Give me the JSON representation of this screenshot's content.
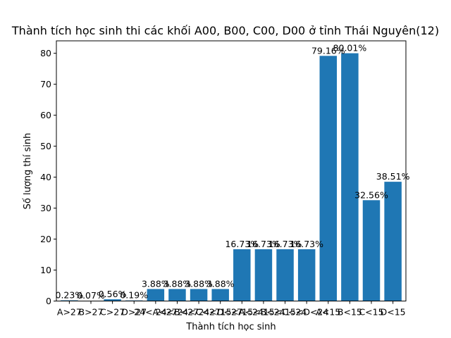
{
  "chart_data": {
    "type": "bar",
    "title": "Thành tích học sinh thi các khối A00, B00, C00, D00 ở tỉnh Thái Nguyên(12)",
    "xlabel": "Thành tích học sinh",
    "ylabel": "Số lượng thí sinh",
    "categories": [
      "A>27",
      "B>27",
      "C>27",
      "D>27",
      "24<A<27",
      "24<B<27",
      "24<C<27",
      "24<D<27",
      "15<A<24",
      "15<B<24",
      "15<C<24",
      "15<D<24",
      "A<15",
      "B<15",
      "C<15",
      "D<15"
    ],
    "values": [
      0.23,
      0.07,
      0.56,
      0.19,
      3.88,
      3.88,
      3.88,
      3.88,
      16.73,
      16.73,
      16.73,
      16.73,
      79.16,
      80.01,
      32.56,
      38.51
    ],
    "data_labels": [
      "0.23%",
      "0.07%",
      "0.56%",
      "0.19%",
      "3.88%",
      "3.88%",
      "3.88%",
      "3.88%",
      "16.73%",
      "16.73%",
      "16.73%",
      "16.73%",
      "79.16%",
      "80.01%",
      "32.56%",
      "38.51%"
    ],
    "yticks": [
      0,
      10,
      20,
      30,
      40,
      50,
      60,
      70,
      80
    ],
    "ylim": [
      0,
      84.01
    ],
    "grid": false,
    "bar_color": "#1f77b4"
  }
}
